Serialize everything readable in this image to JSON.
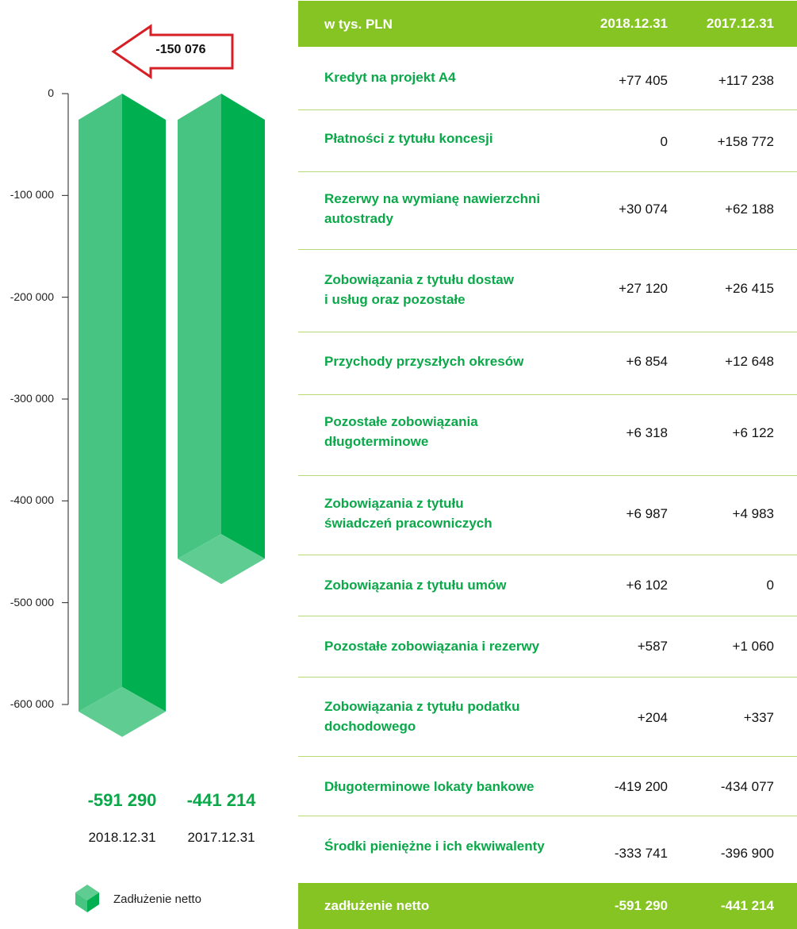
{
  "chart_data": {
    "type": "bar",
    "ylim": [
      -600000,
      0
    ],
    "y_ticks": [
      "0",
      "-100 000",
      "-200 000",
      "-300 000",
      "-400 000",
      "-500 000",
      "-600 000"
    ],
    "y_tick_values": [
      0,
      -100000,
      -200000,
      -300000,
      -400000,
      -500000,
      -600000
    ],
    "categories": [
      "2018.12.31",
      "2017.12.31"
    ],
    "values": [
      -591290,
      -441214
    ],
    "value_labels": [
      "-591 290",
      "-441 214"
    ],
    "difference_label": "-150 076",
    "legend": "Zadłużenie netto",
    "colors": {
      "bar_front": "#47c481",
      "bar_side": "#00b050",
      "bar_bottom": "#5fcd91",
      "arrow": "#d61f26"
    }
  },
  "table": {
    "header": {
      "label": "w tys. PLN",
      "col1": "2018.12.31",
      "col2": "2017.12.31"
    },
    "rows": [
      {
        "label": "Kredyt na projekt A4",
        "v1": "+77 405",
        "v2": "+117 238"
      },
      {
        "label": "Płatności z tytułu koncesji",
        "v1": "0",
        "v2": "+158 772"
      },
      {
        "label": "Rezerwy na wymianę nawierzchni\nautostrady",
        "v1": "+30 074",
        "v2": "+62 188"
      },
      {
        "label": "Zobowiązania z tytułu dostaw\ni usług oraz pozostałe",
        "v1": "+27 120",
        "v2": "+26 415"
      },
      {
        "label": "Przychody przyszłych okresów",
        "v1": "+6 854",
        "v2": "+12 648"
      },
      {
        "label": "Pozostałe zobowiązania\ndługoterminowe",
        "v1": "+6 318",
        "v2": "+6 122"
      },
      {
        "label": "Zobowiązania z tytułu\nświadczeń pracowniczych",
        "v1": "+6 987",
        "v2": "+4 983"
      },
      {
        "label": "Zobowiązania z tytułu umów",
        "v1": "+6 102",
        "v2": "0"
      },
      {
        "label": "Pozostałe zobowiązania i rezerwy",
        "v1": "+587",
        "v2": "+1 060"
      },
      {
        "label": "Zobowiązania z tytułu podatku\ndochodowego",
        "v1": "+204",
        "v2": "+337"
      },
      {
        "label": "Długoterminowe lokaty bankowe",
        "v1": "-419 200",
        "v2": "-434 077"
      },
      {
        "label": "Środki pieniężne i ich ekwiwalenty",
        "v1": "-333 741",
        "v2": "-396 900"
      }
    ],
    "footer": {
      "label": "zadłużenie netto",
      "v1": "-591 290",
      "v2": "-441 214"
    }
  }
}
